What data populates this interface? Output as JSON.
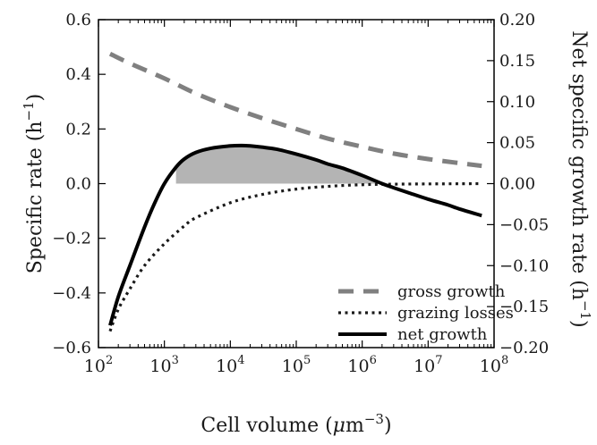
{
  "chart_data": {
    "type": "line",
    "title": "",
    "xlabel": {
      "pre": "Cell volume (",
      "mu": "μ",
      "m": "m",
      "exp": "−3",
      "post": ")"
    },
    "ylabel_left": {
      "pre": "Specific rate (h",
      "exp": "−1",
      "post": ")"
    },
    "ylabel_right": {
      "pre": "Net specific growth rate (h",
      "exp": "−1",
      "post": ")"
    },
    "x_scale": "log",
    "xlim": [
      100,
      100000000
    ],
    "x_ticks": [
      {
        "value": 100,
        "base": "10",
        "exp": "2"
      },
      {
        "value": 1000,
        "base": "10",
        "exp": "3"
      },
      {
        "value": 10000,
        "base": "10",
        "exp": "4"
      },
      {
        "value": 100000,
        "base": "10",
        "exp": "5"
      },
      {
        "value": 1000000,
        "base": "10",
        "exp": "6"
      },
      {
        "value": 10000000,
        "base": "10",
        "exp": "7"
      },
      {
        "value": 100000000,
        "base": "10",
        "exp": "8"
      }
    ],
    "ylim_left": [
      -0.6,
      0.6
    ],
    "y_ticks_left": [
      "0.6",
      "0.4",
      "0.2",
      "0.0",
      "−0.2",
      "−0.4",
      "−0.6"
    ],
    "y_tick_values_left": [
      0.6,
      0.4,
      0.2,
      0.0,
      -0.2,
      -0.4,
      -0.6
    ],
    "ylim_right": [
      -0.2,
      0.2
    ],
    "y_ticks_right": [
      "0.20",
      "0.15",
      "0.10",
      "0.05",
      "0.00",
      "−0.05",
      "−0.10",
      "−0.15",
      "−0.20"
    ],
    "y_tick_values_right": [
      0.2,
      0.15,
      0.1,
      0.05,
      0.0,
      -0.05,
      -0.1,
      -0.15,
      -0.2
    ],
    "grid": false,
    "legend_position": "bottom-right",
    "shaded_region": {
      "description": "positive net growth",
      "x_from": 1500,
      "x_to": 1800000,
      "color": "#b4b4b4"
    },
    "series": [
      {
        "name": "gross growth",
        "axis": "left",
        "style": "dashed",
        "color": "#808080",
        "x": [
          150,
          300,
          1000,
          3000,
          10000,
          30000,
          100000,
          300000,
          1000000,
          3000000,
          10000000,
          30000000,
          65000000
        ],
        "y": [
          0.475,
          0.44,
          0.385,
          0.33,
          0.28,
          0.24,
          0.2,
          0.165,
          0.135,
          0.11,
          0.09,
          0.075,
          0.065
        ]
      },
      {
        "name": "grazing losses",
        "axis": "left",
        "style": "dotted",
        "color": "#1a1a1a",
        "x": [
          150,
          200,
          300,
          500,
          1000,
          2000,
          3000,
          10000,
          30000,
          100000,
          300000,
          1000000,
          3000000,
          10000000,
          30000000,
          65000000
        ],
        "y": [
          -0.54,
          -0.46,
          -0.385,
          -0.3,
          -0.22,
          -0.155,
          -0.125,
          -0.07,
          -0.04,
          -0.02,
          -0.01,
          -0.004,
          -0.002,
          -0.001,
          -0.0005,
          0.0
        ]
      },
      {
        "name": "net growth",
        "axis": "right",
        "style": "solid",
        "color": "#000000",
        "x": [
          150,
          200,
          300,
          500,
          700,
          1000,
          1500,
          2000,
          3000,
          5000,
          10000,
          15000,
          20000,
          30000,
          50000,
          100000,
          200000,
          300000,
          500000,
          1000000,
          2000000,
          3000000,
          5000000,
          10000000,
          20000000,
          30000000,
          65000000
        ],
        "y": [
          -0.173,
          -0.138,
          -0.1,
          -0.053,
          -0.025,
          0.0,
          0.02,
          0.03,
          0.038,
          0.043,
          0.046,
          0.0465,
          0.046,
          0.0445,
          0.042,
          0.036,
          0.029,
          0.024,
          0.019,
          0.01,
          0.0,
          -0.005,
          -0.011,
          -0.019,
          -0.026,
          -0.031,
          -0.039
        ]
      }
    ],
    "legend": [
      {
        "label": "gross growth",
        "style": "dashed"
      },
      {
        "label": "grazing losses",
        "style": "dotted"
      },
      {
        "label": "net growth",
        "style": "solid"
      }
    ]
  }
}
